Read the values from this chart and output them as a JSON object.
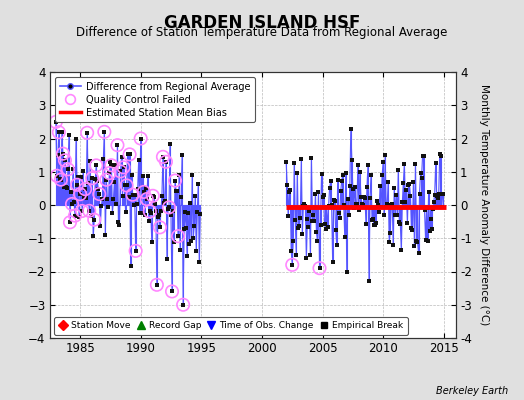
{
  "title": "GARDEN ISLAND HSF",
  "subtitle": "Difference of Station Temperature Data from Regional Average",
  "ylabel": "Monthly Temperature Anomaly Difference (°C)",
  "credit": "Berkeley Earth",
  "xlim": [
    1982.5,
    2016
  ],
  "ylim": [
    -4,
    4
  ],
  "xticks": [
    1985,
    1990,
    1995,
    2000,
    2005,
    2010,
    2015
  ],
  "yticks": [
    -4,
    -3,
    -2,
    -1,
    0,
    1,
    2,
    3,
    4
  ],
  "bias_start": 2002.0,
  "bias_end": 2015.2,
  "bias_value": -0.05,
  "line_color": "#5555ff",
  "dot_color": "#111111",
  "qc_color": "#ff88ff",
  "bias_color": "#ff0000",
  "bg_color": "#e0e0e0",
  "plot_bg": "#ffffff",
  "zero_line_y": 0.0
}
